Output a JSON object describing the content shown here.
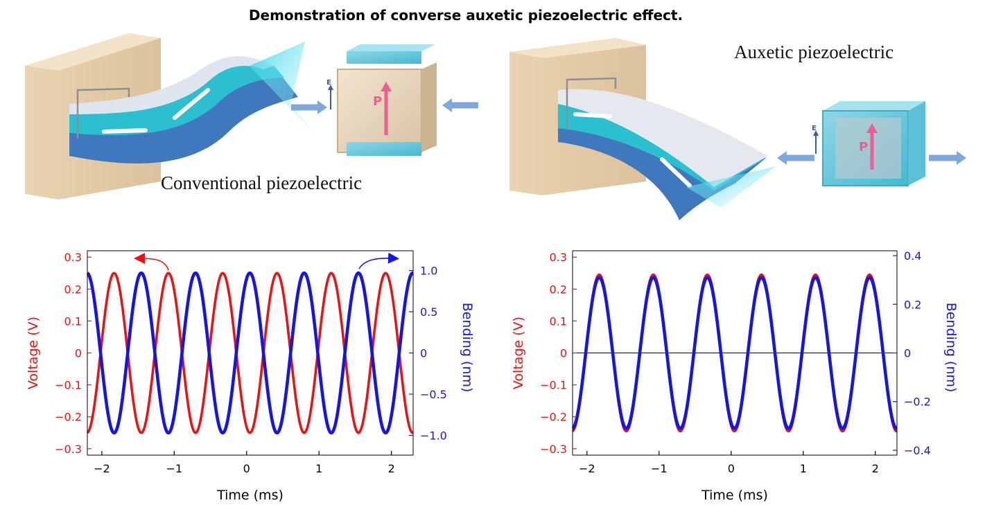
{
  "title": "Demonstration of converse auxetic piezoelectric effect.",
  "illustrations": {
    "left": {
      "caption": "Conventional piezoelectric",
      "field_label": "E",
      "polarization_label": "P"
    },
    "right": {
      "caption": "Auxetic piezoelectric",
      "field_label": "E",
      "polarization_label": "P"
    }
  },
  "colors": {
    "voltage": "#ee1111",
    "bending": "#1515e6",
    "axis": "#000000"
  },
  "chart_data": [
    {
      "type": "line",
      "title": "",
      "xlabel": "Time (ms)",
      "ylabel": "Voltage (V)",
      "y2label": "Bending (nm)",
      "xlim": [
        -2.2,
        2.3
      ],
      "ylim": [
        -0.32,
        0.32
      ],
      "y2lim": [
        -1.24,
        1.24
      ],
      "xticks": [
        -2,
        -1,
        0,
        1,
        2
      ],
      "yticks": [
        -0.3,
        -0.2,
        -0.1,
        0,
        0.1,
        0.2,
        0.3
      ],
      "y2ticks": [
        -1.0,
        -0.5,
        0,
        0.5,
        1.0
      ],
      "ytick_labels": [
        "−0.3",
        "−0.2",
        "−0.1",
        "0",
        "0.1",
        "0.2",
        "0.3"
      ],
      "y2tick_labels": [
        "−1.0",
        "−0.5",
        "0",
        "0.5",
        "1.0"
      ],
      "xtick_labels": [
        "−2",
        "−1",
        "0",
        "1",
        "2"
      ],
      "zero_line": false,
      "series": [
        {
          "axis": "left",
          "color": "#ee1111",
          "amplitude": 0.25,
          "period_ms": 0.75,
          "peak_at_ms": -1.83,
          "description": "sinusoid"
        },
        {
          "axis": "right",
          "color": "#1515e6",
          "amplitude": 0.97,
          "period_ms": 0.75,
          "peak_at_ms": -1.455,
          "description": "sinusoid, opposite phase"
        }
      ],
      "annotations": [
        {
          "type": "arrow",
          "points_to": "left axis",
          "color": "#ee1111"
        },
        {
          "type": "arrow",
          "points_to": "right axis",
          "color": "#1515e6"
        }
      ]
    },
    {
      "type": "line",
      "title": "",
      "xlabel": "Time (ms)",
      "ylabel": "Voltage (V)",
      "y2label": "Bending (nm)",
      "xlim": [
        -2.2,
        2.3
      ],
      "ylim": [
        -0.32,
        0.32
      ],
      "y2lim": [
        -0.42,
        0.42
      ],
      "xticks": [
        -2,
        -1,
        0,
        1,
        2
      ],
      "yticks": [
        -0.3,
        -0.2,
        -0.1,
        0,
        0.1,
        0.2,
        0.3
      ],
      "y2ticks": [
        -0.4,
        -0.2,
        0,
        0.2,
        0.4
      ],
      "ytick_labels": [
        "−0.3",
        "−0.2",
        "−0.1",
        "0",
        "0.1",
        "0.2",
        "0.3"
      ],
      "y2tick_labels": [
        "−0.4",
        "−0.2",
        "0",
        "0.2",
        "0.4"
      ],
      "xtick_labels": [
        "−2",
        "−1",
        "0",
        "1",
        "2"
      ],
      "zero_line": true,
      "series": [
        {
          "axis": "left",
          "color": "#ee1111",
          "amplitude": 0.245,
          "period_ms": 0.75,
          "peak_at_ms": -1.83,
          "description": "sinusoid"
        },
        {
          "axis": "right",
          "color": "#1515e6",
          "amplitude": 0.31,
          "period_ms": 0.75,
          "peak_at_ms": -1.83,
          "description": "sinusoid, in phase"
        }
      ]
    }
  ]
}
